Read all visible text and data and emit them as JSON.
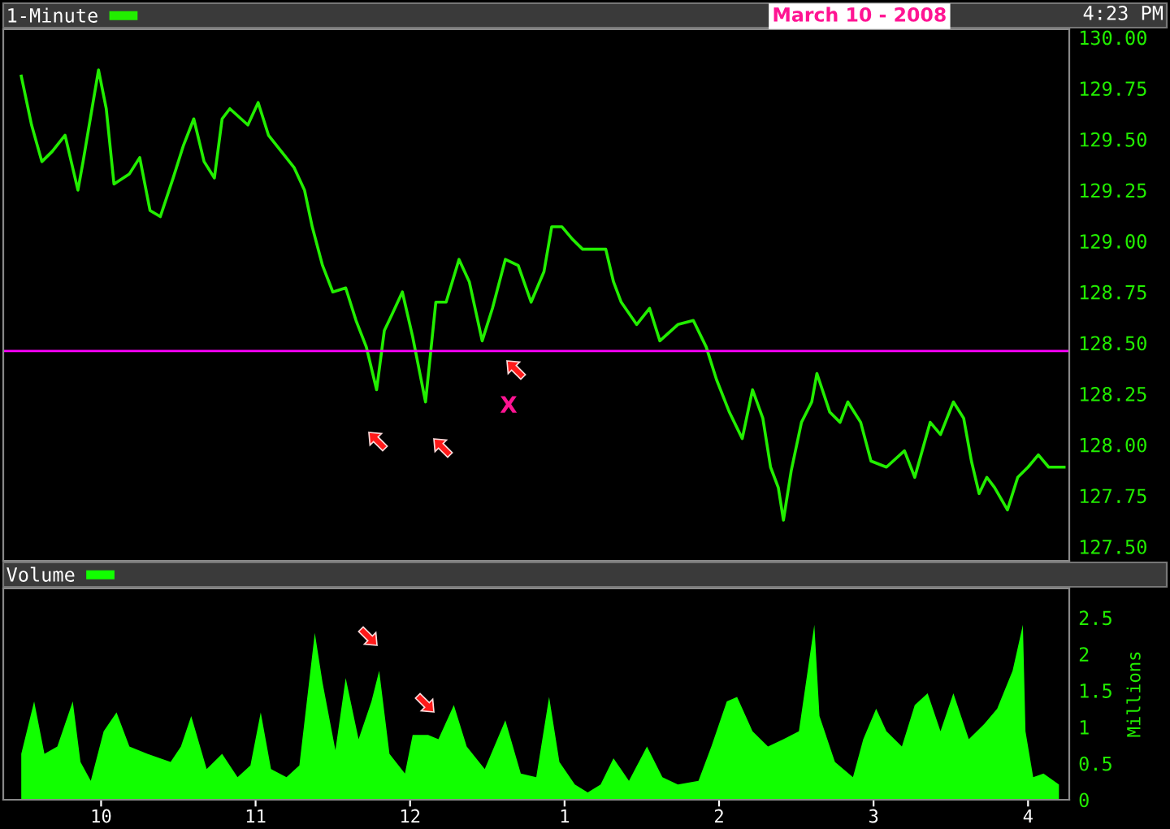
{
  "chart_data": [
    {
      "type": "line",
      "subtitle": "March 10 - 2008",
      "annotations": [
        "4:23 PM",
        "X"
      ],
      "legend": "top left",
      "tick_labels": "y",
      "series": [
        {
          "name": "1-Minute",
          "color": "#22ee00",
          "x": [
            "2008-03-10T09:29",
            "2008-03-10T09:33",
            "2008-03-10T09:37",
            "2008-03-10T09:41",
            "2008-03-10T09:46",
            "2008-03-10T09:51",
            "2008-03-10T09:53",
            "2008-03-10T09:59",
            "2008-03-10T10:02",
            "2008-03-10T10:05",
            "2008-03-10T10:11",
            "2008-03-10T10:15",
            "2008-03-10T10:19",
            "2008-03-10T10:23",
            "2008-03-10T10:28",
            "2008-03-10T10:32",
            "2008-03-10T10:36",
            "2008-03-10T10:40",
            "2008-03-10T10:44",
            "2008-03-10T10:47",
            "2008-03-10T10:50",
            "2008-03-10T10:57",
            "2008-03-10T11:01",
            "2008-03-10T11:05",
            "2008-03-10T11:10",
            "2008-03-10T11:15",
            "2008-03-10T11:19",
            "2008-03-10T11:22",
            "2008-03-10T11:26",
            "2008-03-10T11:30",
            "2008-03-10T11:35",
            "2008-03-10T11:39",
            "2008-03-10T11:43",
            "2008-03-10T11:47",
            "2008-03-10T11:50",
            "2008-03-10T11:53",
            "2008-03-10T11:57",
            "2008-03-10T12:01",
            "2008-03-10T12:06",
            "2008-03-10T12:10",
            "2008-03-10T12:14",
            "2008-03-10T12:19",
            "2008-03-10T12:23",
            "2008-03-10T12:28",
            "2008-03-10T12:32",
            "2008-03-10T12:37",
            "2008-03-10T12:42",
            "2008-03-10T12:47",
            "2008-03-10T12:52",
            "2008-03-10T12:55",
            "2008-03-10T12:59",
            "2008-03-10T13:03",
            "2008-03-10T13:07",
            "2008-03-10T13:12",
            "2008-03-10T13:16",
            "2008-03-10T13:19",
            "2008-03-10T13:22",
            "2008-03-10T13:28",
            "2008-03-10T13:33",
            "2008-03-10T13:37",
            "2008-03-10T13:44",
            "2008-03-10T13:50",
            "2008-03-10T13:55",
            "2008-03-10T13:59",
            "2008-03-10T14:04",
            "2008-03-10T14:09",
            "2008-03-10T14:13",
            "2008-03-10T14:17",
            "2008-03-10T14:20",
            "2008-03-10T14:23",
            "2008-03-10T14:25",
            "2008-03-10T14:28",
            "2008-03-10T14:32",
            "2008-03-10T14:36",
            "2008-03-10T14:38",
            "2008-03-10T14:43",
            "2008-03-10T14:47",
            "2008-03-10T14:50",
            "2008-03-10T14:55",
            "2008-03-10T14:59",
            "2008-03-10T15:05",
            "2008-03-10T15:12",
            "2008-03-10T15:16",
            "2008-03-10T15:22",
            "2008-03-10T15:26",
            "2008-03-10T15:31",
            "2008-03-10T15:35",
            "2008-03-10T15:38",
            "2008-03-10T15:41",
            "2008-03-10T15:44",
            "2008-03-10T15:47",
            "2008-03-10T15:52",
            "2008-03-10T15:56",
            "2008-03-10T16:00",
            "2008-03-10T16:04",
            "2008-03-10T16:08",
            "2008-03-10T16:14"
          ],
          "values": [
            129.81,
            129.57,
            129.39,
            129.44,
            129.52,
            129.25,
            129.39,
            129.84,
            129.65,
            129.28,
            129.33,
            129.41,
            129.15,
            129.12,
            129.31,
            129.47,
            129.6,
            129.39,
            129.31,
            129.6,
            129.65,
            129.57,
            129.68,
            129.52,
            129.44,
            129.36,
            129.25,
            129.07,
            128.88,
            128.75,
            128.77,
            128.61,
            128.48,
            128.27,
            128.56,
            128.64,
            128.75,
            128.53,
            128.21,
            128.7,
            128.7,
            128.91,
            128.8,
            128.51,
            128.67,
            128.91,
            128.88,
            128.7,
            128.85,
            129.07,
            129.07,
            129.01,
            128.96,
            128.96,
            128.96,
            128.8,
            128.7,
            128.59,
            128.67,
            128.51,
            128.59,
            128.61,
            128.48,
            128.32,
            128.16,
            128.03,
            128.27,
            128.13,
            127.89,
            127.79,
            127.63,
            127.87,
            128.11,
            128.21,
            128.35,
            128.16,
            128.11,
            128.21,
            128.11,
            127.92,
            127.89,
            127.97,
            127.84,
            128.11,
            128.05,
            128.21,
            128.13,
            127.92,
            127.76,
            127.84,
            127.79,
            127.68,
            127.84,
            127.89,
            127.95,
            127.89,
            127.89
          ]
        }
      ],
      "xlim": [
        "2008-03-10T09:22",
        "2008-03-10T16:16"
      ],
      "ylim": [
        127.43,
        130.04
      ],
      "yticks": [
        {
          "value": 127.5,
          "label": "127.50"
        },
        127.75,
        {
          "value": 128.0,
          "label": "128.00"
        },
        128.25,
        {
          "value": 128.5,
          "label": "128.50"
        },
        128.75,
        {
          "value": 129.0,
          "label": "129.00"
        },
        129.25,
        {
          "value": 129.5,
          "label": "129.50"
        },
        129.75,
        {
          "value": 130.0,
          "label": "130.00"
        }
      ],
      "ref_lines": [
        {
          "axis": "y",
          "value": 128.46,
          "color": "#ff00ff"
        }
      ]
    },
    {
      "type": "area",
      "ylabel": "Millions",
      "legend": "top left",
      "series": [
        {
          "name": "Volume",
          "color": "#11ff00",
          "x": [
            "2008-03-10T09:29",
            "2008-03-10T09:34",
            "2008-03-10T09:38",
            "2008-03-10T09:43",
            "2008-03-10T09:49",
            "2008-03-10T09:52",
            "2008-03-10T09:56",
            "2008-03-10T10:01",
            "2008-03-10T10:06",
            "2008-03-10T10:11",
            "2008-03-10T10:18",
            "2008-03-10T10:27",
            "2008-03-10T10:31",
            "2008-03-10T10:35",
            "2008-03-10T10:41",
            "2008-03-10T10:47",
            "2008-03-10T10:53",
            "2008-03-10T10:58",
            "2008-03-10T11:02",
            "2008-03-10T11:06",
            "2008-03-10T11:12",
            "2008-03-10T11:17",
            "2008-03-10T11:23",
            "2008-03-10T11:26",
            "2008-03-10T11:31",
            "2008-03-10T11:35",
            "2008-03-10T11:40",
            "2008-03-10T11:45",
            "2008-03-10T11:48",
            "2008-03-10T11:52",
            "2008-03-10T11:58",
            "2008-03-10T12:01",
            "2008-03-10T12:07",
            "2008-03-10T12:11",
            "2008-03-10T12:17",
            "2008-03-10T12:22",
            "2008-03-10T12:29",
            "2008-03-10T12:37",
            "2008-03-10T12:43",
            "2008-03-10T12:49",
            "2008-03-10T12:54",
            "2008-03-10T12:58",
            "2008-03-10T13:04",
            "2008-03-10T13:09",
            "2008-03-10T13:14",
            "2008-03-10T13:19",
            "2008-03-10T13:25",
            "2008-03-10T13:32",
            "2008-03-10T13:38",
            "2008-03-10T13:44",
            "2008-03-10T13:52",
            "2008-03-10T13:57",
            "2008-03-10T14:03",
            "2008-03-10T14:07",
            "2008-03-10T14:13",
            "2008-03-10T14:19",
            "2008-03-10T14:25",
            "2008-03-10T14:31",
            "2008-03-10T14:37",
            "2008-03-10T14:39",
            "2008-03-10T14:45",
            "2008-03-10T14:52",
            "2008-03-10T14:56",
            "2008-03-10T15:01",
            "2008-03-10T15:05",
            "2008-03-10T15:11",
            "2008-03-10T15:16",
            "2008-03-10T15:21",
            "2008-03-10T15:26",
            "2008-03-10T15:31",
            "2008-03-10T15:37",
            "2008-03-10T15:43",
            "2008-03-10T15:48",
            "2008-03-10T15:54",
            "2008-03-10T15:58",
            "2008-03-10T15:59",
            "2008-03-10T16:02",
            "2008-03-10T16:06",
            "2008-03-10T16:12"
          ],
          "values": [
            0.63,
            1.35,
            0.63,
            0.73,
            1.35,
            0.52,
            0.26,
            0.94,
            1.2,
            0.73,
            0.63,
            0.52,
            0.73,
            1.15,
            0.42,
            0.63,
            0.31,
            0.47,
            1.2,
            0.42,
            0.31,
            0.47,
            2.29,
            1.61,
            0.68,
            1.67,
            0.83,
            1.35,
            1.77,
            0.63,
            0.36,
            0.89,
            0.89,
            0.83,
            1.3,
            0.73,
            0.42,
            1.09,
            0.36,
            0.31,
            1.41,
            0.52,
            0.21,
            0.1,
            0.21,
            0.57,
            0.26,
            0.73,
            0.31,
            0.21,
            0.26,
            0.73,
            1.35,
            1.41,
            0.94,
            0.73,
            0.83,
            0.94,
            2.4,
            1.15,
            0.52,
            0.31,
            0.83,
            1.25,
            0.94,
            0.73,
            1.3,
            1.46,
            0.94,
            1.46,
            0.83,
            1.04,
            1.25,
            1.77,
            2.4,
            0.94,
            0.31,
            0.36,
            0.21
          ]
        }
      ],
      "xlim": [
        "2008-03-10T09:22",
        "2008-03-10T16:16"
      ],
      "xticks": [
        {
          "value": "2008-03-10T10:00",
          "label": "10"
        },
        {
          "value": "2008-03-10T11:00",
          "label": "11"
        },
        {
          "value": "2008-03-10T12:00",
          "label": "12"
        },
        {
          "value": "2008-03-10T13:00",
          "label": "1"
        },
        {
          "value": "2008-03-10T14:00",
          "label": "2"
        },
        {
          "value": "2008-03-10T15:00",
          "label": "3"
        },
        {
          "value": "2008-03-10T16:00",
          "label": "4"
        }
      ],
      "ylim": [
        0,
        2.9
      ],
      "yticks": [
        0,
        0.5,
        1,
        1.5,
        2,
        2.5
      ]
    }
  ]
}
